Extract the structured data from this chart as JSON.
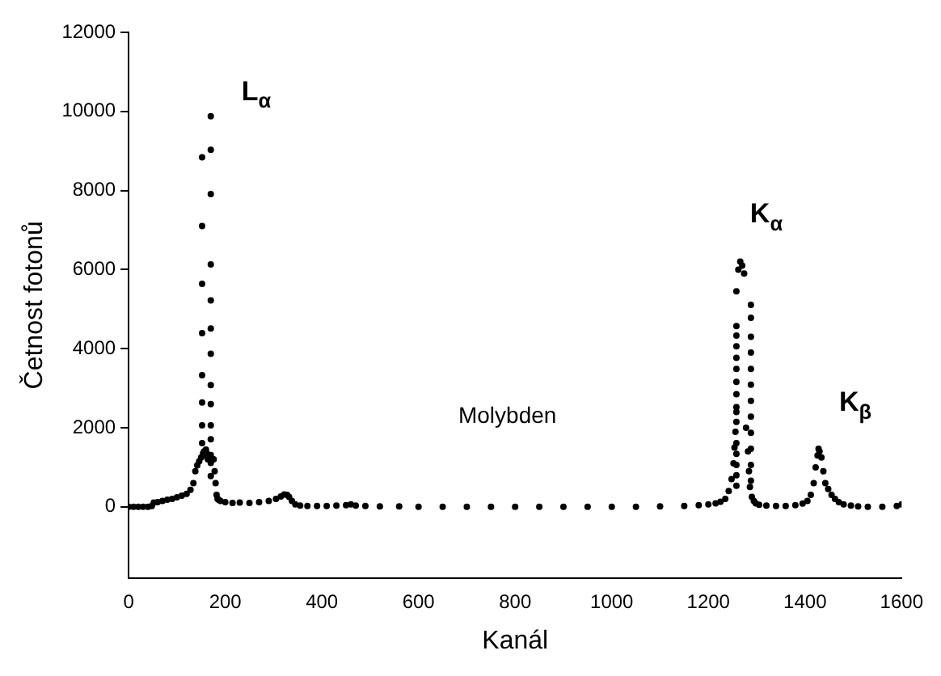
{
  "chart_data": {
    "type": "scatter",
    "xlabel": "Kanál",
    "ylabel": "Četnost fotonů",
    "xlim": [
      0,
      1600
    ],
    "ylim": [
      -1800,
      12000
    ],
    "xticks": [
      0,
      200,
      400,
      600,
      800,
      1000,
      1200,
      1400,
      1600
    ],
    "yticks": [
      0,
      2000,
      4000,
      6000,
      8000,
      10000,
      12000
    ],
    "grid": false,
    "legend": false,
    "marker": "circle",
    "series": [
      {
        "color": "#000000",
        "x": [
          0,
          10,
          20,
          30,
          40,
          48,
          52,
          60,
          70,
          80,
          90,
          100,
          110,
          120,
          128,
          134,
          138,
          142,
          146,
          150,
          154,
          156,
          158,
          160,
          162,
          164,
          176,
          178,
          180,
          182,
          184,
          186,
          190,
          200,
          215,
          230,
          250,
          270,
          290,
          305,
          315,
          322,
          328,
          332,
          338,
          345,
          355,
          370,
          390,
          410,
          430,
          450,
          460,
          470,
          490,
          520,
          560,
          600,
          650,
          700,
          750,
          800,
          850,
          900,
          950,
          1000,
          1050,
          1100,
          1150,
          1180,
          1200,
          1215,
          1225,
          1235,
          1242,
          1248,
          1252,
          1254,
          1256,
          1258,
          1262,
          1266,
          1270,
          1274,
          1278,
          1282,
          1284,
          1286,
          1290,
          1294,
          1298,
          1305,
          1320,
          1340,
          1360,
          1380,
          1395,
          1405,
          1412,
          1418,
          1422,
          1426,
          1428,
          1430,
          1434,
          1438,
          1442,
          1448,
          1455,
          1462,
          1470,
          1480,
          1495,
          1510,
          1530,
          1560,
          1590,
          1600
        ],
        "values": [
          0,
          0,
          0,
          0,
          0,
          20,
          110,
          120,
          150,
          180,
          200,
          240,
          280,
          330,
          430,
          600,
          900,
          1050,
          1150,
          1250,
          1350,
          1400,
          1300,
          1450,
          1350,
          1200,
          1200,
          900,
          600,
          300,
          200,
          180,
          150,
          120,
          100,
          110,
          100,
          120,
          150,
          200,
          260,
          310,
          300,
          250,
          150,
          60,
          30,
          20,
          20,
          20,
          30,
          40,
          60,
          30,
          20,
          10,
          10,
          0,
          0,
          0,
          0,
          0,
          0,
          0,
          0,
          0,
          0,
          10,
          20,
          40,
          60,
          90,
          130,
          200,
          400,
          700,
          1100,
          1500,
          1900,
          2400,
          6000,
          6200,
          6100,
          5900,
          2000,
          1400,
          900,
          500,
          250,
          150,
          90,
          50,
          30,
          20,
          20,
          40,
          80,
          150,
          300,
          600,
          1000,
          1300,
          1470,
          1400,
          1250,
          900,
          600,
          450,
          300,
          200,
          120,
          60,
          30,
          10,
          0,
          0,
          20,
          60
        ]
      },
      {
        "color": "#000000",
        "x": [
          152,
          152,
          152,
          152,
          152,
          152,
          152,
          152,
          170,
          170,
          170,
          170,
          170,
          170,
          170,
          170,
          170,
          170,
          170,
          170,
          170,
          170,
          1258,
          1258,
          1258,
          1258,
          1258,
          1258,
          1258,
          1258,
          1258,
          1258,
          1258,
          1258,
          1258,
          1258,
          1258,
          1288,
          1288,
          1288,
          1288,
          1288,
          1288,
          1288,
          1288,
          1288,
          1288,
          1288,
          1288
        ],
        "values": [
          8840,
          7100,
          5640,
          4390,
          3330,
          2640,
          2060,
          1610,
          9880,
          9030,
          7910,
          6130,
          5220,
          4510,
          3870,
          3080,
          2600,
          2060,
          1710,
          1310,
          1110,
          780,
          5450,
          4570,
          4330,
          4060,
          3770,
          3490,
          3160,
          2850,
          2520,
          2150,
          1610,
          1340,
          1060,
          800,
          530,
          5110,
          4780,
          4300,
          3900,
          3490,
          3090,
          2680,
          2280,
          1870,
          1470,
          1060,
          660
        ]
      }
    ],
    "annotations": [
      "L$_{α}$",
      "K$_{α}$",
      "K$_{β}$",
      "Molybden"
    ]
  }
}
